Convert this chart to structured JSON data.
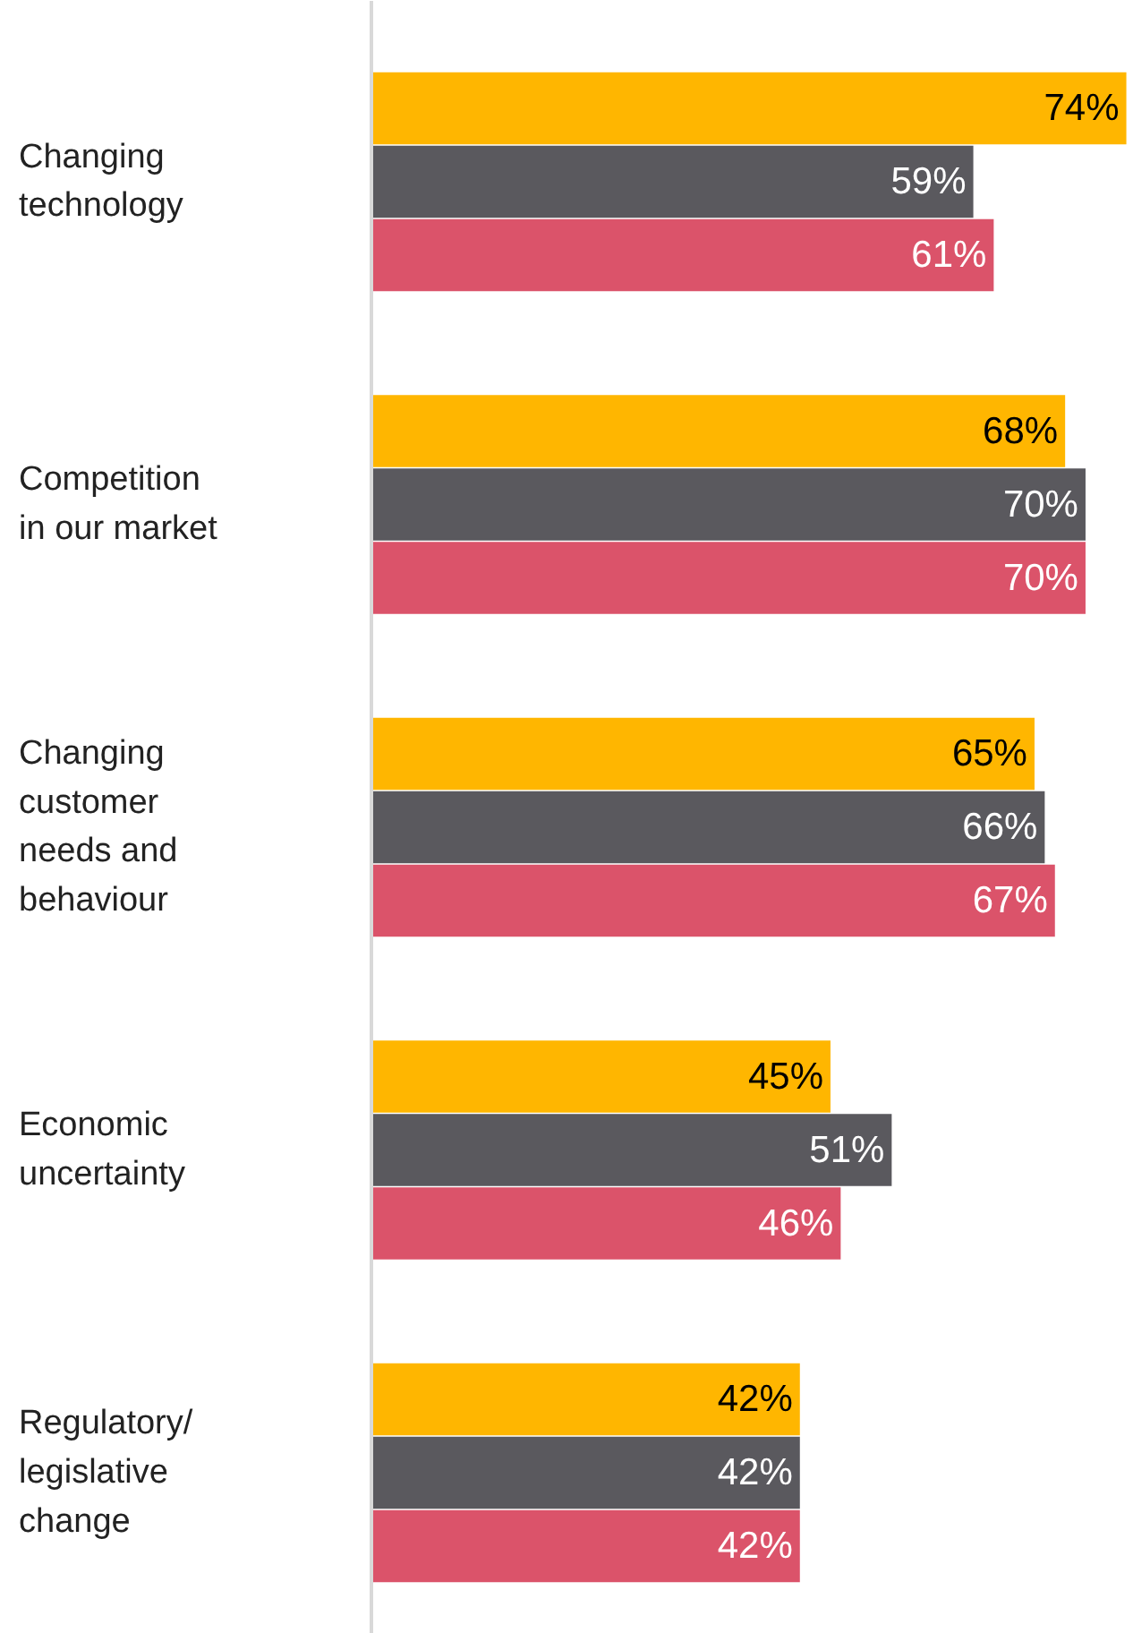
{
  "chart_data": {
    "type": "bar",
    "orientation": "horizontal",
    "categories": [
      "Changing\ntechnology",
      "Competition\nin our market",
      "Changing\ncustomer\nneeds and\nbehaviour",
      "Economic\nuncertainty",
      "Regulatory/\nlegislative\nchange"
    ],
    "series": [
      {
        "color": "#ffb600",
        "values": [
          74,
          68,
          65,
          45,
          42
        ],
        "value_labels": [
          "74%",
          "68%",
          "65%",
          "45%",
          "42%"
        ]
      },
      {
        "color": "#5a595e",
        "values": [
          59,
          70,
          66,
          51,
          42
        ],
        "value_labels": [
          "59%",
          "70%",
          "66%",
          "51%",
          "42%"
        ]
      },
      {
        "color": "#db536a",
        "values": [
          61,
          70,
          67,
          46,
          42
        ],
        "value_labels": [
          "61%",
          "70%",
          "67%",
          "46%",
          "42%"
        ]
      }
    ]
  }
}
